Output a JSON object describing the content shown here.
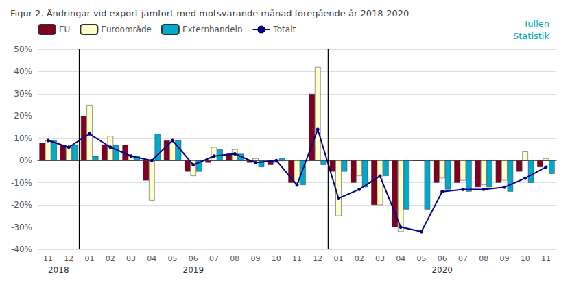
{
  "chart_data": {
    "type": "bar",
    "title": "Figur 2. Ändringar vid export jämfört med motsvarande månad föregående år 2018-2020",
    "categories": [
      "11",
      "12",
      "01",
      "02",
      "03",
      "04",
      "05",
      "06",
      "07",
      "08",
      "09",
      "10",
      "11",
      "12",
      "01",
      "02",
      "03",
      "04",
      "05",
      "06",
      "07",
      "08",
      "09",
      "10",
      "11"
    ],
    "series": [
      {
        "name": "EU",
        "type": "bar",
        "color": "#800020",
        "values": [
          8,
          7,
          20,
          7,
          7,
          -9,
          9,
          -5,
          -1,
          3,
          -1,
          -2,
          -10,
          30,
          -5,
          -10,
          -20,
          -30,
          0,
          -10,
          -10,
          -12,
          -10,
          -5,
          -3
        ]
      },
      {
        "name": "Euroområde",
        "type": "bar",
        "color": "#FFFFCC",
        "values": [
          9,
          6,
          25,
          11,
          2,
          -18,
          9,
          -7,
          6,
          5,
          1,
          -1,
          -10,
          42,
          -25,
          -7,
          -20,
          -32,
          0,
          -8,
          -9,
          -11,
          -9,
          4,
          1
        ]
      },
      {
        "name": "Externhandeln",
        "type": "bar",
        "color": "#00AACC",
        "values": [
          9,
          7,
          2,
          7,
          2,
          12,
          9,
          -5,
          5,
          3,
          -3,
          1,
          -11,
          -2,
          -5,
          -12,
          -7,
          -22,
          -22,
          -13,
          -14,
          -12,
          -14,
          -10,
          -6
        ]
      },
      {
        "name": "Totalt",
        "type": "line",
        "color": "#000080",
        "marker": "circle",
        "values": [
          9,
          6,
          12,
          6,
          2,
          0,
          9,
          -2,
          2,
          3,
          -1,
          0,
          -11,
          14,
          -17,
          -13,
          -7,
          -30,
          -32,
          -14,
          -13,
          -13,
          -12,
          -8,
          -3
        ]
      }
    ],
    "ylim": [
      -40,
      50
    ],
    "yticks": [
      {
        "value": -40,
        "label": "-40%"
      },
      {
        "value": -30,
        "label": "-30%"
      },
      {
        "value": -20,
        "label": "-20%"
      },
      {
        "value": -10,
        "label": "-10%"
      },
      {
        "value": 0,
        "label": "0%"
      },
      {
        "value": 10,
        "label": "10%"
      },
      {
        "value": 20,
        "label": "20%"
      },
      {
        "value": 30,
        "label": "30%"
      },
      {
        "value": 40,
        "label": "40%"
      },
      {
        "value": 50,
        "label": "50%"
      }
    ],
    "grid": true,
    "legend": "upper left",
    "annotations": [
      {
        "text": "2018",
        "x": 0.5
      },
      {
        "text": "2019",
        "x": 7.0
      },
      {
        "text": "2020",
        "x": 19.0
      }
    ],
    "vlines": [
      {
        "x": 1.5
      },
      {
        "x": 13.5
      }
    ],
    "watermark": {
      "lines": [
        "Tullen",
        "Statistik"
      ],
      "color": "#00AAAA"
    }
  }
}
